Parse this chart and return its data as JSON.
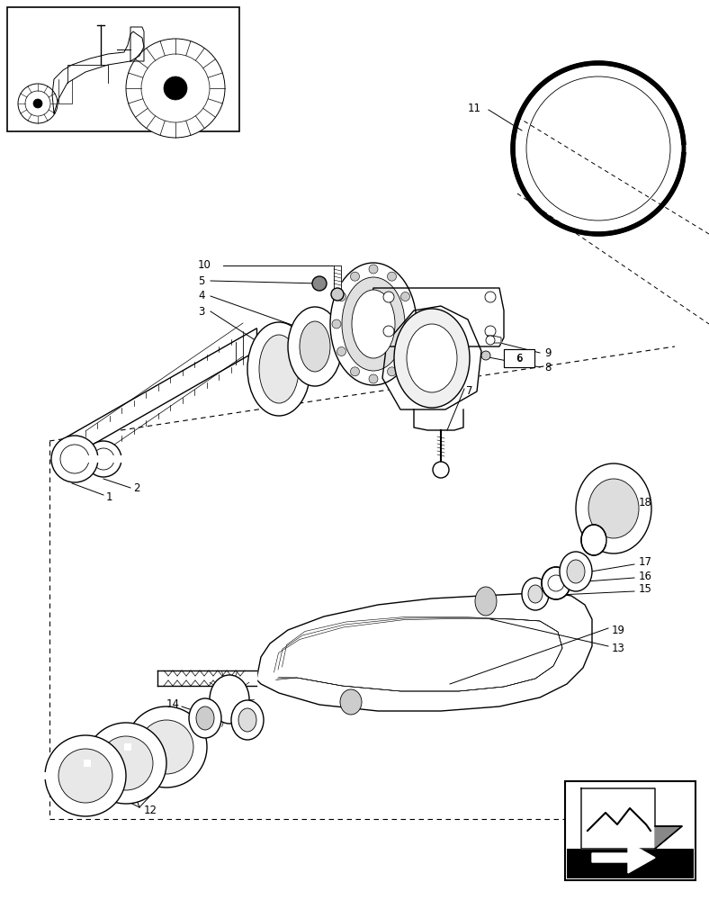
{
  "bg_color": "#ffffff",
  "line_color": "#000000",
  "fig_width": 7.88,
  "fig_height": 10.0,
  "dpi": 100
}
